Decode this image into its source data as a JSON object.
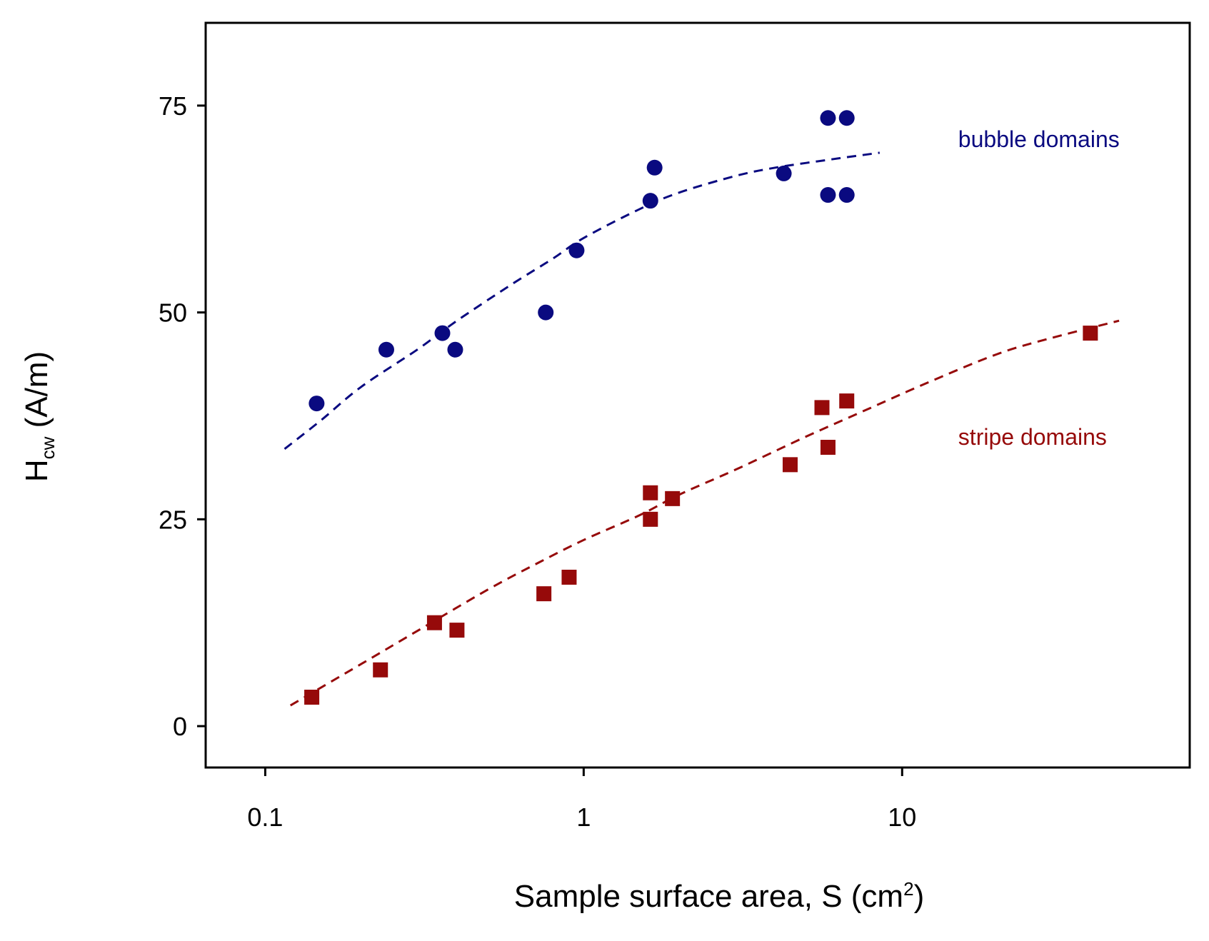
{
  "chart_data": {
    "type": "scatter",
    "title": "",
    "x_scale": "log",
    "xlim": [
      0.065,
      80
    ],
    "ylim": [
      -5,
      85
    ],
    "grid": false,
    "legend": "none",
    "xlabel": {
      "main": "Sample surface area, S (cm",
      "sup": "2",
      "tail": ")"
    },
    "ylabel": {
      "main": "H",
      "sub": "cw",
      "tail": " (A/m)"
    },
    "x_ticks": [
      {
        "value": 0.1,
        "label": "0.1"
      },
      {
        "value": 1,
        "label": "1"
      },
      {
        "value": 10,
        "label": "10"
      }
    ],
    "y_ticks": [
      {
        "value": 0,
        "label": "0"
      },
      {
        "value": 25,
        "label": "25"
      },
      {
        "value": 50,
        "label": "50"
      },
      {
        "value": 75,
        "label": "75"
      }
    ],
    "series": [
      {
        "name": "bubble domains",
        "marker": "circle",
        "color": "#0a0a80",
        "label": "bubble domains",
        "label_anchor": {
          "x": 15,
          "y": 70
        },
        "points": [
          {
            "x": 0.145,
            "y": 39
          },
          {
            "x": 0.24,
            "y": 45.5
          },
          {
            "x": 0.36,
            "y": 47.5
          },
          {
            "x": 0.395,
            "y": 45.5
          },
          {
            "x": 0.76,
            "y": 50
          },
          {
            "x": 0.95,
            "y": 57.5
          },
          {
            "x": 1.62,
            "y": 63.5
          },
          {
            "x": 1.67,
            "y": 67.5
          },
          {
            "x": 4.25,
            "y": 66.8
          },
          {
            "x": 5.85,
            "y": 64.2
          },
          {
            "x": 5.85,
            "y": 73.5
          },
          {
            "x": 6.7,
            "y": 64.2
          },
          {
            "x": 6.7,
            "y": 73.5
          }
        ],
        "fit": {
          "style": "dashed",
          "x": [
            0.115,
            0.15,
            0.2,
            0.3,
            0.4,
            0.6,
            0.8,
            1,
            1.5,
            2,
            3,
            4,
            6,
            8.5
          ],
          "y": [
            33.5,
            37,
            41,
            45.5,
            49,
            53.5,
            56.5,
            59,
            62.5,
            64.5,
            66.5,
            67.5,
            68.5,
            69.3
          ]
        }
      },
      {
        "name": "stripe domains",
        "marker": "square",
        "color": "#960a0a",
        "label": "stripe domains",
        "label_anchor": {
          "x": 15,
          "y": 34
        },
        "points": [
          {
            "x": 0.14,
            "y": 3.5
          },
          {
            "x": 0.23,
            "y": 6.8
          },
          {
            "x": 0.34,
            "y": 12.5
          },
          {
            "x": 0.4,
            "y": 11.6
          },
          {
            "x": 0.75,
            "y": 16
          },
          {
            "x": 0.9,
            "y": 18
          },
          {
            "x": 1.62,
            "y": 28.2
          },
          {
            "x": 1.62,
            "y": 25
          },
          {
            "x": 1.9,
            "y": 27.5
          },
          {
            "x": 4.45,
            "y": 31.6
          },
          {
            "x": 5.6,
            "y": 38.5
          },
          {
            "x": 5.85,
            "y": 33.7
          },
          {
            "x": 6.7,
            "y": 39.3
          },
          {
            "x": 39,
            "y": 47.5
          }
        ],
        "fit": {
          "style": "dashed",
          "x": [
            0.12,
            0.2,
            0.3,
            0.5,
            0.7,
            1,
            1.5,
            2,
            3,
            5,
            8,
            12,
            20,
            30,
            48
          ],
          "y": [
            2.5,
            7.5,
            11.5,
            16.5,
            19.5,
            22.5,
            25.5,
            28,
            31,
            35,
            38.5,
            41.5,
            45,
            47,
            49
          ]
        }
      }
    ]
  }
}
